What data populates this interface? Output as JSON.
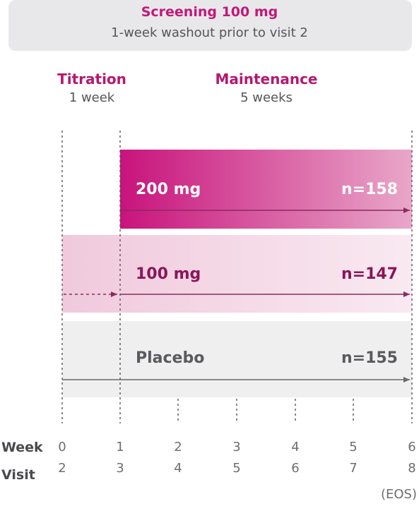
{
  "screening": {
    "title": "Screening 100 mg",
    "subtitle": "1-week washout prior to visit 2"
  },
  "phases": {
    "titration": {
      "title": "Titration",
      "duration": "1 week"
    },
    "maintenance": {
      "title": "Maintenance",
      "duration": "5 weeks"
    }
  },
  "arms": [
    {
      "label": "200 mg",
      "n": "n=158",
      "color": "#c2187a"
    },
    {
      "label": "100 mg",
      "n": "n=147",
      "color": "#8a1658"
    },
    {
      "label": "Placebo",
      "n": "n=155",
      "color": "#5a5a5e"
    }
  ],
  "axis": {
    "week_label": "Week",
    "visit_label": "Visit",
    "weeks": [
      "0",
      "1",
      "2",
      "3",
      "4",
      "5",
      "6"
    ],
    "visits": [
      "2",
      "3",
      "4",
      "5",
      "6",
      "7",
      "8"
    ],
    "eos": "(EOS)"
  },
  "colors": {
    "accent": "#c2187a",
    "band_light": "#f5dce8",
    "placebo_band": "#efeff0",
    "arrow": "#8a2a5e"
  }
}
